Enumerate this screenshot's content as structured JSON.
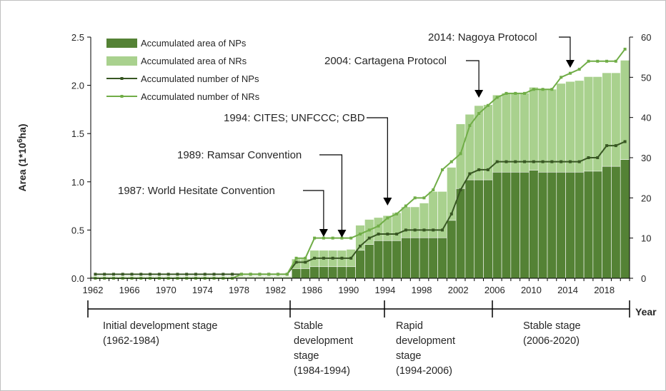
{
  "chart_data": {
    "type": "bar",
    "title": "",
    "ylabel_left": "Area (1*10⁶ha)",
    "ylabel_left_parts": {
      "prefix": "Area (1*10",
      "sup": "6",
      "suffix": "ha)"
    },
    "xlabel": "Year",
    "ylim_left": [
      0,
      2.5
    ],
    "ylim_right": [
      0,
      60
    ],
    "yticks_left": [
      "0.0",
      "0.5",
      "1.0",
      "1.5",
      "2.0",
      "2.5"
    ],
    "yticks_right": [
      "0",
      "10",
      "20",
      "30",
      "40",
      "50",
      "60"
    ],
    "x_tick_labels": [
      "1962",
      "1966",
      "1970",
      "1974",
      "1978",
      "1982",
      "1986",
      "1990",
      "1994",
      "1998",
      "2002",
      "2006",
      "2010",
      "2014",
      "2018"
    ],
    "years": [
      1962,
      1963,
      1964,
      1965,
      1966,
      1967,
      1968,
      1969,
      1970,
      1971,
      1972,
      1973,
      1974,
      1975,
      1976,
      1977,
      1978,
      1979,
      1980,
      1981,
      1982,
      1983,
      1984,
      1985,
      1986,
      1987,
      1988,
      1989,
      1990,
      1991,
      1992,
      1993,
      1994,
      1995,
      1996,
      1997,
      1998,
      1999,
      2000,
      2001,
      2002,
      2003,
      2004,
      2005,
      2006,
      2007,
      2008,
      2009,
      2010,
      2011,
      2012,
      2013,
      2014,
      2015,
      2016,
      2017,
      2018,
      2019,
      2020
    ],
    "grid": false,
    "legend_placement": "top-left",
    "series": [
      {
        "name": "Accumulated area of NPs",
        "kind": "bar",
        "axis": "left",
        "color": "#548235",
        "values": [
          0.01,
          0.01,
          0.01,
          0.01,
          0.01,
          0.01,
          0.01,
          0.01,
          0.01,
          0.01,
          0.01,
          0.01,
          0.01,
          0.01,
          0.01,
          0.01,
          0.01,
          0.01,
          0.01,
          0.01,
          0.01,
          0.01,
          0.1,
          0.1,
          0.12,
          0.12,
          0.12,
          0.12,
          0.12,
          0.29,
          0.35,
          0.39,
          0.39,
          0.39,
          0.42,
          0.42,
          0.42,
          0.42,
          0.42,
          0.6,
          0.93,
          1.02,
          1.02,
          1.02,
          1.1,
          1.1,
          1.1,
          1.1,
          1.12,
          1.1,
          1.1,
          1.1,
          1.1,
          1.1,
          1.11,
          1.11,
          1.16,
          1.16,
          1.23
        ]
      },
      {
        "name": "Accumulated area of NRs",
        "kind": "bar",
        "axis": "left",
        "color": "#a9d18e",
        "values": [
          0.02,
          0.02,
          0.02,
          0.02,
          0.02,
          0.02,
          0.02,
          0.02,
          0.02,
          0.02,
          0.02,
          0.02,
          0.02,
          0.02,
          0.02,
          0.02,
          0.02,
          0.02,
          0.02,
          0.02,
          0.02,
          0.02,
          0.2,
          0.2,
          0.29,
          0.29,
          0.29,
          0.29,
          0.3,
          0.55,
          0.61,
          0.63,
          0.65,
          0.68,
          0.74,
          0.74,
          0.78,
          0.9,
          0.9,
          1.15,
          1.6,
          1.7,
          1.79,
          1.8,
          1.9,
          1.92,
          1.92,
          1.92,
          1.98,
          1.96,
          1.96,
          2.02,
          2.04,
          2.05,
          2.09,
          2.09,
          2.13,
          2.13,
          2.26
        ]
      },
      {
        "name": "Accumulated number of NPs",
        "kind": "line",
        "axis": "right",
        "color": "#385723",
        "values": [
          1,
          1,
          1,
          1,
          1,
          1,
          1,
          1,
          1,
          1,
          1,
          1,
          1,
          1,
          1,
          1,
          1,
          1,
          1,
          1,
          1,
          1,
          4,
          4,
          5,
          5,
          5,
          5,
          5,
          8,
          10,
          11,
          11,
          11,
          12,
          12,
          12,
          12,
          12,
          16,
          22,
          26,
          27,
          27,
          29,
          29,
          29,
          29,
          29,
          29,
          29,
          29,
          29,
          29,
          30,
          30,
          33,
          33,
          34
        ]
      },
      {
        "name": "Accumulated number of NRs",
        "kind": "line",
        "axis": "right",
        "color": "#70ad47",
        "values": [
          0,
          0,
          0,
          0,
          0,
          0,
          0,
          0,
          0,
          0,
          0,
          0,
          0,
          0,
          0,
          0,
          1,
          1,
          1,
          1,
          1,
          1,
          5,
          5,
          10,
          10,
          10,
          10,
          10,
          11,
          12,
          13,
          15,
          16,
          18,
          20,
          20,
          22,
          27,
          29,
          31,
          38,
          41,
          43,
          45,
          46,
          46,
          46,
          47,
          47,
          47,
          50,
          51,
          52,
          54,
          54,
          54,
          54,
          57
        ]
      }
    ],
    "annotations": [
      {
        "text": "1987: World Hesitate Convention",
        "year": 1987
      },
      {
        "text": "1989: Ramsar Convention",
        "year": 1989
      },
      {
        "text": "1994: CITES; UNFCCC; CBD",
        "year": 1994
      },
      {
        "text": "2004: Cartagena Protocol",
        "year": 2004
      },
      {
        "text": "2014: Nagoya Protocol",
        "year": 2014
      }
    ],
    "stages": [
      {
        "lines": [
          "Initial development stage",
          "(1962-1984)"
        ],
        "start": 1962,
        "end": 1984
      },
      {
        "lines": [
          "Stable",
          "development",
          "stage",
          "(1984-1994)"
        ],
        "start": 1984,
        "end": 1994
      },
      {
        "lines": [
          "Rapid",
          "development",
          "stage",
          "(1994-2006)"
        ],
        "start": 1994,
        "end": 2006
      },
      {
        "lines": [
          "Stable stage",
          "(2006-2020)"
        ],
        "start": 2006,
        "end": 2020
      }
    ]
  }
}
